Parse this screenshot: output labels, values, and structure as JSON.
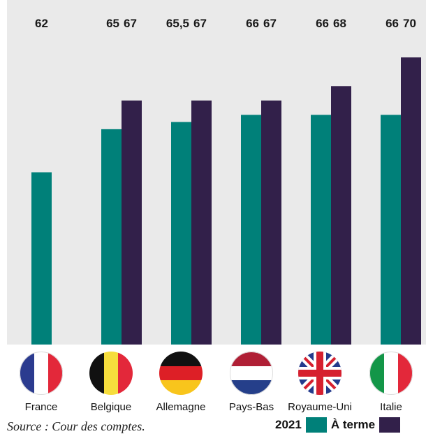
{
  "chart_data": {
    "type": "bar",
    "categories": [
      "France",
      "Belgique",
      "Allemagne",
      "Pays-Bas",
      "Royaume-Uni",
      "Italie"
    ],
    "series": [
      {
        "name": "2021",
        "values": [
          62,
          65,
          65.5,
          66,
          66,
          66
        ],
        "labels": [
          "62",
          "65",
          "65,5",
          "66",
          "66",
          "66"
        ],
        "color": "#008079"
      },
      {
        "name": "À terme",
        "values": [
          null,
          67,
          67,
          67,
          68,
          70
        ],
        "labels": [
          "",
          "67",
          "67",
          "67",
          "68",
          "70"
        ],
        "color": "#32204a"
      }
    ],
    "ylim": [
      50,
      74
    ]
  },
  "flags": [
    "flag-france-icon",
    "flag-belgium-icon",
    "flag-germany-icon",
    "flag-netherlands-icon",
    "flag-uk-icon",
    "flag-italy-icon"
  ],
  "source": "Source : Cour des comptes.",
  "legend": {
    "label_2021": "2021",
    "label_terme": "À terme"
  }
}
